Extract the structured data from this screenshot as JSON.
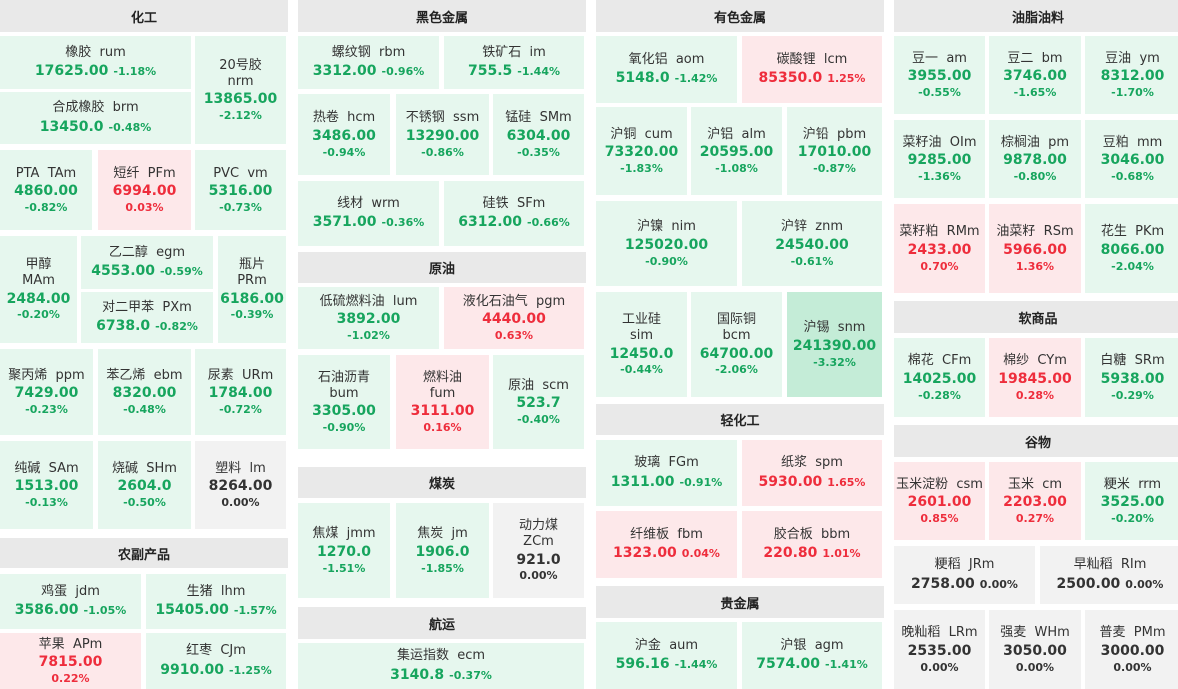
{
  "columns": [
    {
      "sections": [
        {
          "title": "化工",
          "cells": [
            {
              "name": "橡胶",
              "code": "rum",
              "price": "17625.00",
              "change": "-1.18%",
              "trend": "down"
            },
            {
              "name": "20号胶",
              "code": "nrm",
              "price": "13865.00",
              "change": "-2.12%",
              "trend": "down"
            },
            {
              "name": "合成橡胶",
              "code": "brm",
              "price": "13450.0",
              "change": "-0.48%",
              "trend": "down"
            },
            {
              "name": "PTA",
              "code": "TAm",
              "price": "4860.00",
              "change": "-0.82%",
              "trend": "down"
            },
            {
              "name": "短纤",
              "code": "PFm",
              "price": "6994.00",
              "change": "0.03%",
              "trend": "up"
            },
            {
              "name": "PVC",
              "code": "vm",
              "price": "5316.00",
              "change": "-0.73%",
              "trend": "down"
            },
            {
              "name": "甲醇",
              "code": "MAm",
              "price": "2484.00",
              "change": "-0.20%",
              "trend": "down"
            },
            {
              "name": "乙二醇",
              "code": "egm",
              "price": "4553.00",
              "change": "-0.59%",
              "trend": "down"
            },
            {
              "name": "瓶片",
              "code": "PRm",
              "price": "6186.00",
              "change": "-0.39%",
              "trend": "down"
            },
            {
              "name": "对二甲苯",
              "code": "PXm",
              "price": "6738.0",
              "change": "-0.82%",
              "trend": "down"
            },
            {
              "name": "聚丙烯",
              "code": "ppm",
              "price": "7429.00",
              "change": "-0.23%",
              "trend": "down"
            },
            {
              "name": "苯乙烯",
              "code": "ebm",
              "price": "8320.00",
              "change": "-0.48%",
              "trend": "down"
            },
            {
              "name": "尿素",
              "code": "URm",
              "price": "1784.00",
              "change": "-0.72%",
              "trend": "down"
            },
            {
              "name": "纯碱",
              "code": "SAm",
              "price": "1513.00",
              "change": "-0.13%",
              "trend": "down"
            },
            {
              "name": "烧碱",
              "code": "SHm",
              "price": "2604.0",
              "change": "-0.50%",
              "trend": "down"
            },
            {
              "name": "塑料",
              "code": "lm",
              "price": "8264.00",
              "change": "0.00%",
              "trend": "flat"
            }
          ]
        },
        {
          "title": "农副产品",
          "cells": [
            {
              "name": "鸡蛋",
              "code": "jdm",
              "price": "3586.00",
              "change": "-1.05%",
              "trend": "down"
            },
            {
              "name": "生猪",
              "code": "lhm",
              "price": "15405.00",
              "change": "-1.57%",
              "trend": "down"
            },
            {
              "name": "苹果",
              "code": "APm",
              "price": "7815.00",
              "change": "0.22%",
              "trend": "up"
            },
            {
              "name": "红枣",
              "code": "CJm",
              "price": "9910.00",
              "change": "-1.25%",
              "trend": "down"
            }
          ]
        }
      ]
    },
    {
      "sections": [
        {
          "title": "黑色金属",
          "cells": [
            {
              "name": "螺纹钢",
              "code": "rbm",
              "price": "3312.00",
              "change": "-0.96%",
              "trend": "down"
            },
            {
              "name": "铁矿石",
              "code": "im",
              "price": "755.5",
              "change": "-1.44%",
              "trend": "down"
            },
            {
              "name": "热卷",
              "code": "hcm",
              "price": "3486.00",
              "change": "-0.94%",
              "trend": "down"
            },
            {
              "name": "不锈钢",
              "code": "ssm",
              "price": "13290.00",
              "change": "-0.86%",
              "trend": "down"
            },
            {
              "name": "锰硅",
              "code": "SMm",
              "price": "6304.00",
              "change": "-0.35%",
              "trend": "down"
            },
            {
              "name": "线材",
              "code": "wrm",
              "price": "3571.00",
              "change": "-0.36%",
              "trend": "down"
            },
            {
              "name": "硅铁",
              "code": "SFm",
              "price": "6312.00",
              "change": "-0.66%",
              "trend": "down"
            }
          ]
        },
        {
          "title": "原油",
          "cells": [
            {
              "name": "低硫燃料油",
              "code": "lum",
              "price": "3892.00",
              "change": "-1.02%",
              "trend": "down"
            },
            {
              "name": "液化石油气",
              "code": "pgm",
              "price": "4440.00",
              "change": "0.63%",
              "trend": "up"
            },
            {
              "name": "石油沥青",
              "code": "bum",
              "price": "3305.00",
              "change": "-0.90%",
              "trend": "down"
            },
            {
              "name": "燃料油",
              "code": "fum",
              "price": "3111.00",
              "change": "0.16%",
              "trend": "up"
            },
            {
              "name": "原油",
              "code": "scm",
              "price": "523.7",
              "change": "-0.40%",
              "trend": "down"
            }
          ]
        },
        {
          "title": "煤炭",
          "cells": [
            {
              "name": "焦煤",
              "code": "jmm",
              "price": "1270.0",
              "change": "-1.51%",
              "trend": "down"
            },
            {
              "name": "焦炭",
              "code": "jm",
              "price": "1906.0",
              "change": "-1.85%",
              "trend": "down"
            },
            {
              "name": "动力煤",
              "code": "ZCm",
              "price": "921.0",
              "change": "0.00%",
              "trend": "flat"
            }
          ]
        },
        {
          "title": "航运",
          "cells": [
            {
              "name": "集运指数",
              "code": "ecm",
              "price": "3140.8",
              "change": "-0.37%",
              "trend": "down"
            }
          ]
        }
      ]
    },
    {
      "sections": [
        {
          "title": "有色金属",
          "cells": [
            {
              "name": "氧化铝",
              "code": "aom",
              "price": "5148.0",
              "change": "-1.42%",
              "trend": "down"
            },
            {
              "name": "碳酸锂",
              "code": "lcm",
              "price": "85350.0",
              "change": "1.25%",
              "trend": "up"
            },
            {
              "name": "沪铜",
              "code": "cum",
              "price": "73320.00",
              "change": "-1.83%",
              "trend": "down"
            },
            {
              "name": "沪铝",
              "code": "alm",
              "price": "20595.00",
              "change": "-1.08%",
              "trend": "down"
            },
            {
              "name": "沪铅",
              "code": "pbm",
              "price": "17010.00",
              "change": "-0.87%",
              "trend": "down"
            },
            {
              "name": "沪镍",
              "code": "nim",
              "price": "125020.00",
              "change": "-0.90%",
              "trend": "down"
            },
            {
              "name": "沪锌",
              "code": "znm",
              "price": "24540.00",
              "change": "-0.61%",
              "trend": "down"
            },
            {
              "name": "工业硅",
              "code": "sim",
              "price": "12450.0",
              "change": "-0.44%",
              "trend": "down"
            },
            {
              "name": "国际铜",
              "code": "bcm",
              "price": "64700.00",
              "change": "-2.06%",
              "trend": "down"
            },
            {
              "name": "沪锡",
              "code": "snm",
              "price": "241390.00",
              "change": "-3.32%",
              "trend": "strong-down"
            }
          ]
        },
        {
          "title": "轻化工",
          "cells": [
            {
              "name": "玻璃",
              "code": "FGm",
              "price": "1311.00",
              "change": "-0.91%",
              "trend": "down"
            },
            {
              "name": "纸浆",
              "code": "spm",
              "price": "5930.00",
              "change": "1.65%",
              "trend": "up"
            },
            {
              "name": "纤维板",
              "code": "fbm",
              "price": "1323.00",
              "change": "0.04%",
              "trend": "up"
            },
            {
              "name": "胶合板",
              "code": "bbm",
              "price": "220.80",
              "change": "1.01%",
              "trend": "up"
            }
          ]
        },
        {
          "title": "贵金属",
          "cells": [
            {
              "name": "沪金",
              "code": "aum",
              "price": "596.16",
              "change": "-1.44%",
              "trend": "down"
            },
            {
              "name": "沪银",
              "code": "agm",
              "price": "7574.00",
              "change": "-1.41%",
              "trend": "down"
            }
          ]
        }
      ]
    },
    {
      "sections": [
        {
          "title": "油脂油料",
          "cells": [
            {
              "name": "豆一",
              "code": "am",
              "price": "3955.00",
              "change": "-0.55%",
              "trend": "down"
            },
            {
              "name": "豆二",
              "code": "bm",
              "price": "3746.00",
              "change": "-1.65%",
              "trend": "down"
            },
            {
              "name": "豆油",
              "code": "ym",
              "price": "8312.00",
              "change": "-1.70%",
              "trend": "down"
            },
            {
              "name": "菜籽油",
              "code": "OIm",
              "price": "9285.00",
              "change": "-1.36%",
              "trend": "down"
            },
            {
              "name": "棕榈油",
              "code": "pm",
              "price": "9878.00",
              "change": "-0.80%",
              "trend": "down"
            },
            {
              "name": "豆粕",
              "code": "mm",
              "price": "3046.00",
              "change": "-0.68%",
              "trend": "down"
            },
            {
              "name": "菜籽粕",
              "code": "RMm",
              "price": "2433.00",
              "change": "0.70%",
              "trend": "up"
            },
            {
              "name": "油菜籽",
              "code": "RSm",
              "price": "5966.00",
              "change": "1.36%",
              "trend": "up"
            },
            {
              "name": "花生",
              "code": "PKm",
              "price": "8066.00",
              "change": "-2.04%",
              "trend": "down"
            }
          ]
        },
        {
          "title": "软商品",
          "cells": [
            {
              "name": "棉花",
              "code": "CFm",
              "price": "14025.00",
              "change": "-0.28%",
              "trend": "down"
            },
            {
              "name": "棉纱",
              "code": "CYm",
              "price": "19845.00",
              "change": "0.28%",
              "trend": "up"
            },
            {
              "name": "白糖",
              "code": "SRm",
              "price": "5938.00",
              "change": "-0.29%",
              "trend": "down"
            }
          ]
        },
        {
          "title": "谷物",
          "cells": [
            {
              "name": "玉米淀粉",
              "code": "csm",
              "price": "2601.00",
              "change": "0.85%",
              "trend": "up"
            },
            {
              "name": "玉米",
              "code": "cm",
              "price": "2203.00",
              "change": "0.27%",
              "trend": "up"
            },
            {
              "name": "粳米",
              "code": "rrm",
              "price": "3525.00",
              "change": "-0.20%",
              "trend": "down"
            },
            {
              "name": "粳稻",
              "code": "JRm",
              "price": "2758.00",
              "change": "0.00%",
              "trend": "flat"
            },
            {
              "name": "早籼稻",
              "code": "RIm",
              "price": "2500.00",
              "change": "0.00%",
              "trend": "flat"
            },
            {
              "name": "晚籼稻",
              "code": "LRm",
              "price": "2535.00",
              "change": "0.00%",
              "trend": "flat"
            },
            {
              "name": "强麦",
              "code": "WHm",
              "price": "3050.00",
              "change": "0.00%",
              "trend": "flat"
            },
            {
              "name": "普麦",
              "code": "PMm",
              "price": "3000.00",
              "change": "0.00%",
              "trend": "flat"
            }
          ]
        }
      ]
    }
  ]
}
